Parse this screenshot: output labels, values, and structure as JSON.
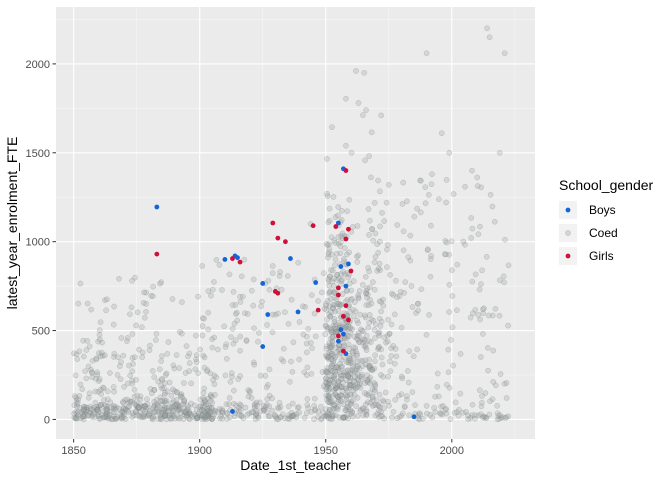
{
  "chart_data": {
    "type": "scatter",
    "xlabel": "Date_1st_teacher",
    "ylabel": "latest_year_enrolment_FTE",
    "xlim": [
      1843,
      2033
    ],
    "ylim": [
      -110,
      2320
    ],
    "x_ticks": [
      1850,
      1900,
      1950,
      2000
    ],
    "y_ticks": [
      0,
      500,
      1000,
      1500,
      2000
    ],
    "grid": true,
    "legend": {
      "title": "School_gender",
      "position": "right"
    },
    "series": [
      {
        "name": "Boys",
        "color": "#1565d8",
        "points": [
          [
            1883,
            1195
          ],
          [
            1910,
            900
          ],
          [
            1914,
            920
          ],
          [
            1915,
            910
          ],
          [
            1925,
            765
          ],
          [
            1927,
            590
          ],
          [
            1925,
            410
          ],
          [
            1913,
            45
          ],
          [
            1936,
            905
          ],
          [
            1939,
            605
          ],
          [
            1946,
            770
          ],
          [
            1955,
            1105
          ],
          [
            1956,
            860
          ],
          [
            1957,
            1410
          ],
          [
            1956,
            505
          ],
          [
            1958,
            750
          ],
          [
            1957,
            480
          ],
          [
            1959,
            875
          ],
          [
            1955,
            440
          ],
          [
            1958,
            370
          ],
          [
            1985,
            15
          ]
        ]
      },
      {
        "name": "Coed",
        "color": "#9aa3a3",
        "points": "sampled-cloud"
      },
      {
        "name": "Girls",
        "color": "#d0103a",
        "points": [
          [
            1883,
            930
          ],
          [
            1913,
            905
          ],
          [
            1916,
            885
          ],
          [
            1929,
            1105
          ],
          [
            1931,
            1020
          ],
          [
            1930,
            720
          ],
          [
            1931,
            710
          ],
          [
            1934,
            1000
          ],
          [
            1945,
            1090
          ],
          [
            1954,
            1085
          ],
          [
            1947,
            615
          ],
          [
            1955,
            740
          ],
          [
            1958,
            1400
          ],
          [
            1958,
            1015
          ],
          [
            1959,
            1070
          ],
          [
            1960,
            835
          ],
          [
            1955,
            700
          ],
          [
            1958,
            640
          ],
          [
            1957,
            580
          ],
          [
            1959,
            560
          ],
          [
            1957,
            385
          ],
          [
            1955,
            470
          ]
        ]
      }
    ]
  }
}
